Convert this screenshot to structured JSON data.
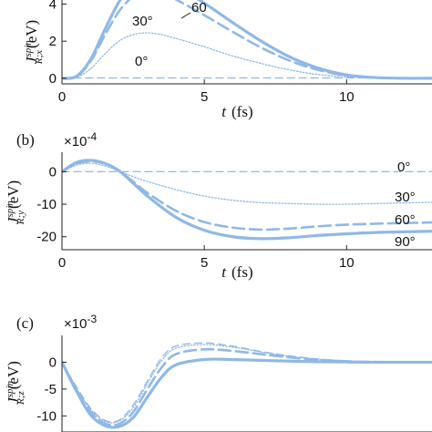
{
  "chart_data": [
    {
      "type": "line",
      "panel_label": "",
      "ylabel_main": "J",
      "ylabel_sup": "spin",
      "ylabel_sub": "R;x",
      "ylabel_unit": "(eV)",
      "xlabel_main": "t",
      "xlabel_unit": "(fs)",
      "xlim": [
        0,
        13
      ],
      "ylim": [
        -0.3,
        5.2
      ],
      "xticks": [
        "0",
        "5",
        "10"
      ],
      "yticks": [
        "0",
        "2",
        "4"
      ],
      "series": [
        {
          "name": "0°",
          "style": "dash-thin",
          "x": [
            0,
            13
          ],
          "y": [
            0.02,
            0.02
          ]
        },
        {
          "name": "30°",
          "style": "dotted",
          "x": [
            0,
            0.5,
            1,
            1.5,
            2,
            2.5,
            3,
            3.5,
            4,
            5,
            6,
            7,
            8,
            9,
            10,
            11,
            12,
            13
          ],
          "y": [
            0,
            0.05,
            0.5,
            1.3,
            2.0,
            2.35,
            2.45,
            2.35,
            2.15,
            1.7,
            1.2,
            0.8,
            0.45,
            0.2,
            0.08,
            0.02,
            0.0,
            0.0
          ]
        },
        {
          "name": "60°",
          "style": "dashed",
          "x": [
            0,
            0.5,
            1,
            1.5,
            2,
            2.5,
            3,
            3.5,
            4,
            5,
            6,
            7,
            8,
            9,
            10,
            11,
            12,
            13
          ],
          "y": [
            0,
            0.08,
            0.9,
            2.3,
            3.6,
            4.4,
            4.7,
            4.6,
            4.25,
            3.4,
            2.5,
            1.65,
            0.95,
            0.45,
            0.15,
            0.03,
            0.0,
            0.0
          ]
        },
        {
          "name": "90°",
          "style": "solid-thick",
          "x": [
            0,
            0.5,
            1,
            1.5,
            2,
            2.5,
            3,
            3.5,
            4,
            5,
            6,
            7,
            8,
            9,
            10,
            11,
            12,
            13
          ],
          "y": [
            0,
            0.1,
            1.0,
            2.6,
            4.1,
            5.0,
            5.4,
            5.35,
            5.0,
            4.05,
            3.0,
            2.0,
            1.15,
            0.55,
            0.18,
            0.04,
            0.0,
            0.0
          ]
        }
      ],
      "annotations": [
        "60",
        "30°",
        "0°"
      ]
    },
    {
      "type": "line",
      "panel_label": "(b)",
      "exponent_text": "×10",
      "exponent_power": "-4",
      "ylabel_main": "J",
      "ylabel_sup": "spin",
      "ylabel_sub": "R;y",
      "ylabel_unit": "(eV)",
      "xlabel_main": "t",
      "xlabel_unit": "(fs)",
      "xlim": [
        0,
        13
      ],
      "ylim": [
        -24,
        6
      ],
      "xticks": [
        "0",
        "5",
        "10"
      ],
      "yticks": [
        "0",
        "-10",
        "-20"
      ],
      "series": [
        {
          "name": "0°",
          "style": "dash-thin",
          "x": [
            0,
            13
          ],
          "y": [
            0,
            0
          ]
        },
        {
          "name": "30°",
          "style": "dotted",
          "x": [
            0,
            0.5,
            1,
            1.5,
            2,
            2.5,
            3,
            4,
            5,
            6,
            7,
            8,
            9,
            10,
            11,
            12,
            13
          ],
          "y": [
            0,
            2.0,
            2.6,
            1.8,
            0.2,
            -1.5,
            -3.0,
            -5.5,
            -7.5,
            -8.8,
            -9.5,
            -9.8,
            -10.0,
            -10.0,
            -9.8,
            -9.6,
            -9.4
          ]
        },
        {
          "name": "60°",
          "style": "dashed",
          "x": [
            0,
            0.5,
            1,
            1.5,
            2,
            2.5,
            3,
            4,
            5,
            6,
            7,
            8,
            9,
            10,
            11,
            12,
            13
          ],
          "y": [
            0,
            2.5,
            3.2,
            2.5,
            0.3,
            -3.0,
            -6.5,
            -12.0,
            -15.5,
            -17.2,
            -17.8,
            -17.5,
            -16.8,
            -16.3,
            -16.0,
            -15.8,
            -15.6
          ]
        },
        {
          "name": "90°",
          "style": "solid-thick",
          "x": [
            0,
            0.5,
            1,
            1.5,
            2,
            2.5,
            3,
            4,
            5,
            6,
            7,
            8,
            9,
            10,
            11,
            12,
            13
          ],
          "y": [
            0,
            2.8,
            3.5,
            2.6,
            0.3,
            -3.5,
            -7.5,
            -14.0,
            -18.0,
            -20.0,
            -20.6,
            -20.3,
            -19.6,
            -19.1,
            -18.7,
            -18.5,
            -18.3
          ]
        }
      ],
      "annotations": [
        "0°",
        "30°",
        "60°",
        "90°"
      ]
    },
    {
      "type": "line",
      "panel_label": "(c)",
      "exponent_text": "×10",
      "exponent_power": "-3",
      "ylabel_main": "J",
      "ylabel_sup": "spin",
      "ylabel_sub": "R;z",
      "ylabel_unit": "(eV)",
      "xlim": [
        0,
        13
      ],
      "ylim": [
        -13,
        5
      ],
      "yticks": [
        "0",
        "-5",
        "-10"
      ],
      "series": [
        {
          "name": "0°",
          "style": "dash-thin",
          "x": [
            0,
            0.5,
            1,
            1.5,
            2,
            2.5,
            3,
            3.5,
            4,
            5,
            6,
            7,
            8,
            9,
            10,
            11,
            12,
            13
          ],
          "y": [
            0,
            -4.5,
            -8.5,
            -10.8,
            -10.8,
            -8.0,
            -3.5,
            0.8,
            3.0,
            3.6,
            3.0,
            2.0,
            1.2,
            0.6,
            0.25,
            0.05,
            0.0,
            0.0
          ]
        },
        {
          "name": "30°",
          "style": "dotted",
          "x": [
            0,
            0.5,
            1,
            1.5,
            2,
            2.5,
            3,
            3.5,
            4,
            5,
            6,
            7,
            8,
            9,
            10,
            11,
            12,
            13
          ],
          "y": [
            0,
            -4.8,
            -8.8,
            -11.0,
            -11.0,
            -8.5,
            -4.0,
            0.3,
            2.6,
            3.3,
            2.8,
            1.9,
            1.1,
            0.55,
            0.22,
            0.05,
            0.0,
            0.0
          ]
        },
        {
          "name": "60°",
          "style": "dashed",
          "x": [
            0,
            0.5,
            1,
            1.5,
            2,
            2.5,
            3,
            3.5,
            4,
            5,
            6,
            7,
            8,
            9,
            10,
            11,
            12,
            13
          ],
          "y": [
            0,
            -5.0,
            -9.2,
            -11.4,
            -11.5,
            -9.3,
            -5.0,
            -1.0,
            1.5,
            2.4,
            2.1,
            1.5,
            0.9,
            0.45,
            0.18,
            0.04,
            0.0,
            0.0
          ]
        },
        {
          "name": "90°",
          "style": "solid-thick",
          "x": [
            0,
            0.5,
            1,
            1.5,
            2,
            2.5,
            3,
            3.5,
            4,
            5,
            6,
            7,
            8,
            9,
            10,
            11,
            12,
            13
          ],
          "y": [
            0,
            -5.3,
            -9.8,
            -11.8,
            -12.0,
            -10.3,
            -6.5,
            -2.8,
            -0.5,
            0.5,
            0.5,
            0.35,
            0.2,
            0.1,
            0.04,
            0.0,
            0.0,
            0.0
          ]
        }
      ],
      "annotations": []
    }
  ],
  "colors": {
    "line": "#8fb8e6",
    "axis": "#222222",
    "text": "#111111"
  }
}
